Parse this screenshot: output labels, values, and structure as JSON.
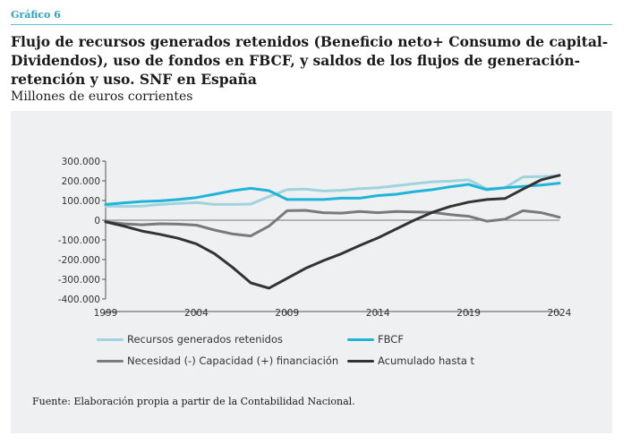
{
  "header": {
    "label": "Gráfico 6",
    "title": "Flujo de recursos generados retenidos (Beneficio neto+ Consumo de capital-Dividendos), uso de fondos en FBCF, y saldos de los flujos de generación-retención y uso. SNF en España",
    "subtitle": "Millones de euros corrientes"
  },
  "source": "Fuente: Elaboración propia a partir de la Contabilidad Nacional.",
  "chart_data": {
    "type": "line",
    "title": "Flujo de recursos generados retenidos (Beneficio neto+ Consumo de capital-Dividendos), uso de fondos en FBCF, y saldos de los flujos de generación-retención y uso. SNF en España",
    "ylabel": "Millones de euros corrientes",
    "xlabel": "",
    "x": [
      1999,
      2000,
      2001,
      2002,
      2003,
      2004,
      2005,
      2006,
      2007,
      2008,
      2009,
      2010,
      2011,
      2012,
      2013,
      2014,
      2015,
      2016,
      2017,
      2018,
      2019,
      2020,
      2021,
      2022,
      2023,
      2024
    ],
    "xticks": [
      1999,
      2004,
      2009,
      2014,
      2019,
      2024
    ],
    "xtick_labels": [
      "1999",
      "2004",
      "2009",
      "2014",
      "2019",
      "2024"
    ],
    "ylim": [
      -400000,
      300000
    ],
    "yticks": [
      300000,
      200000,
      100000,
      0,
      -100000,
      -200000,
      -300000,
      -400000
    ],
    "ytick_labels": [
      "300.000",
      "200.000",
      "100.000",
      "0",
      "-100.000",
      "-200.000",
      "-300.000",
      "-400.000"
    ],
    "grid": false,
    "legend_position": "bottom",
    "series": [
      {
        "name": "Recursos generados retenidos",
        "color": "#9fd4de",
        "width": 3,
        "values": [
          72000,
          70000,
          72000,
          80000,
          85000,
          90000,
          80000,
          80000,
          82000,
          120000,
          155000,
          158000,
          148000,
          152000,
          160000,
          165000,
          175000,
          185000,
          195000,
          198000,
          205000,
          160000,
          165000,
          220000,
          222000,
          225000
        ]
      },
      {
        "name": "FBCF",
        "color": "#1fb5d9",
        "width": 3,
        "values": [
          80000,
          88000,
          95000,
          98000,
          105000,
          115000,
          132000,
          150000,
          162000,
          150000,
          105000,
          105000,
          105000,
          112000,
          112000,
          125000,
          132000,
          145000,
          155000,
          170000,
          182000,
          155000,
          165000,
          172000,
          178000,
          188000
        ]
      },
      {
        "name": "Necesidad (-) Capacidad (+) financiación",
        "color": "#7a7a7a",
        "width": 3,
        "values": [
          -8000,
          -18000,
          -23000,
          -18000,
          -20000,
          -25000,
          -50000,
          -70000,
          -80000,
          -30000,
          48000,
          50000,
          38000,
          36000,
          44000,
          38000,
          44000,
          42000,
          40000,
          28000,
          20000,
          -5000,
          5000,
          48000,
          38000,
          15000
        ]
      },
      {
        "name": "Acumulado hasta t",
        "color": "#333333",
        "width": 3,
        "values": [
          -8000,
          -30000,
          -55000,
          -72000,
          -92000,
          -120000,
          -170000,
          -240000,
          -318000,
          -345000,
          -295000,
          -245000,
          -205000,
          -170000,
          -128000,
          -90000,
          -45000,
          0,
          40000,
          70000,
          92000,
          105000,
          110000,
          158000,
          205000,
          228000
        ]
      }
    ]
  }
}
